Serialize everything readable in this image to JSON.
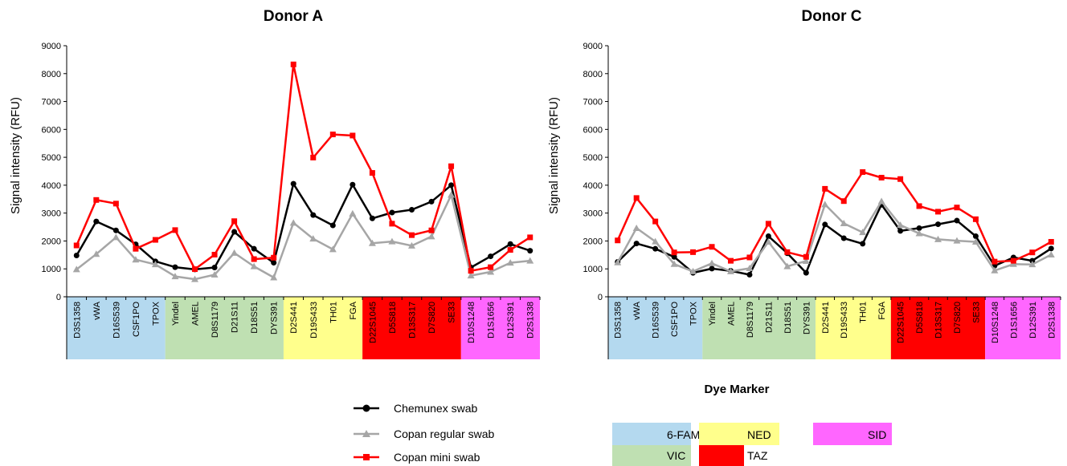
{
  "chart_data": [
    {
      "type": "line",
      "title": "Donor A",
      "ylabel": "Signal intensity (RFU)",
      "xlabel": "",
      "ylim": [
        0,
        9000
      ],
      "yticks": [
        0,
        1000,
        2000,
        3000,
        4000,
        5000,
        6000,
        7000,
        8000,
        9000
      ],
      "categories": [
        "D3S1358",
        "vWA",
        "D16S539",
        "CSF1PO",
        "TPOX",
        "Yindel",
        "AMEL",
        "D8S1179",
        "D21S11",
        "D18S51",
        "DYS391",
        "D2S441",
        "D19S433",
        "TH01",
        "FGA",
        "D22S1045",
        "D5S818",
        "D13S317",
        "D7S820",
        "SE33",
        "D10S1248",
        "D1S1656",
        "D12S391",
        "D2S1338"
      ],
      "dye_groups": [
        {
          "dye": "6-FAM",
          "start": 0,
          "count": 5
        },
        {
          "dye": "VIC",
          "start": 5,
          "count": 6
        },
        {
          "dye": "NED",
          "start": 11,
          "count": 4
        },
        {
          "dye": "TAZ",
          "start": 15,
          "count": 5
        },
        {
          "dye": "SID",
          "start": 20,
          "count": 4
        }
      ],
      "series": [
        {
          "name": "Chemunex swab",
          "color": "#000000",
          "marker": "circle",
          "values": [
            1480,
            2700,
            2380,
            1880,
            1270,
            1060,
            980,
            1050,
            2330,
            1720,
            1220,
            4050,
            2930,
            2560,
            4020,
            2810,
            3020,
            3120,
            3410,
            4000,
            1050,
            1450,
            1890,
            1650
          ]
        },
        {
          "name": "Copan regular swab",
          "color": "#a6a6a6",
          "marker": "triangle",
          "values": [
            980,
            1530,
            2130,
            1330,
            1160,
            730,
            630,
            790,
            1570,
            1090,
            690,
            2650,
            2080,
            1700,
            2980,
            1920,
            1980,
            1830,
            2160,
            3650,
            760,
            890,
            1220,
            1290
          ]
        },
        {
          "name": "Copan mini swab",
          "color": "#ff0000",
          "marker": "square",
          "values": [
            1840,
            3470,
            3340,
            1720,
            2040,
            2390,
            990,
            1510,
            2710,
            1350,
            1400,
            8330,
            4990,
            5820,
            5780,
            4440,
            2620,
            2210,
            2380,
            4680,
            930,
            1060,
            1680,
            2130
          ]
        }
      ]
    },
    {
      "type": "line",
      "title": "Donor C",
      "ylabel": "Signal intensity (RFU)",
      "xlabel": "",
      "ylim": [
        0,
        9000
      ],
      "yticks": [
        0,
        1000,
        2000,
        3000,
        4000,
        5000,
        6000,
        7000,
        8000,
        9000
      ],
      "categories": [
        "D3S1358",
        "vWA",
        "D16S539",
        "CSF1PO",
        "TPOX",
        "Yindel",
        "AMEL",
        "D8S1179",
        "D21S11",
        "D18S51",
        "DYS391",
        "D2S441",
        "D19S433",
        "TH01",
        "FGA",
        "D22S1045",
        "D5S818",
        "D13S317",
        "D7S820",
        "SE33",
        "D10S1248",
        "D1S1656",
        "D12S391",
        "D2S1338"
      ],
      "dye_groups": [
        {
          "dye": "6-FAM",
          "start": 0,
          "count": 5
        },
        {
          "dye": "VIC",
          "start": 5,
          "count": 6
        },
        {
          "dye": "NED",
          "start": 11,
          "count": 4
        },
        {
          "dye": "TAZ",
          "start": 15,
          "count": 5
        },
        {
          "dye": "SID",
          "start": 20,
          "count": 4
        }
      ],
      "series": [
        {
          "name": "Chemunex swab",
          "color": "#000000",
          "marker": "circle",
          "values": [
            1250,
            1910,
            1720,
            1430,
            860,
            1010,
            930,
            790,
            2170,
            1560,
            860,
            2590,
            2100,
            1900,
            3300,
            2360,
            2460,
            2600,
            2730,
            2170,
            1110,
            1410,
            1290,
            1730
          ]
        },
        {
          "name": "Copan regular swab",
          "color": "#a6a6a6",
          "marker": "triangle",
          "values": [
            1230,
            2460,
            1980,
            1170,
            910,
            1200,
            910,
            1020,
            1970,
            1090,
            1280,
            3310,
            2630,
            2310,
            3420,
            2570,
            2270,
            2060,
            2010,
            1970,
            940,
            1170,
            1160,
            1510
          ]
        },
        {
          "name": "Copan mini swab",
          "color": "#ff0000",
          "marker": "square",
          "values": [
            2020,
            3540,
            2700,
            1590,
            1600,
            1790,
            1290,
            1410,
            2620,
            1600,
            1430,
            3870,
            3430,
            4470,
            4270,
            4220,
            3250,
            3050,
            3200,
            2780,
            1260,
            1290,
            1590,
            1970
          ]
        }
      ]
    }
  ],
  "legend": {
    "items": [
      {
        "name": "Chemunex swab",
        "color": "#000000",
        "marker": "circle"
      },
      {
        "name": "Copan regular swab",
        "color": "#a6a6a6",
        "marker": "triangle"
      },
      {
        "name": "Copan mini swab",
        "color": "#ff0000",
        "marker": "square"
      }
    ]
  },
  "dye_legend": {
    "title": "Dye Marker",
    "items": [
      {
        "dye": "6-FAM",
        "color": "#b4d9ef"
      },
      {
        "dye": "VIC",
        "color": "#bfe0b2"
      },
      {
        "dye": "NED",
        "color": "#ffff8c"
      },
      {
        "dye": "TAZ",
        "color": "#ff0000"
      },
      {
        "dye": "SID",
        "color": "#ff66ff"
      }
    ]
  }
}
